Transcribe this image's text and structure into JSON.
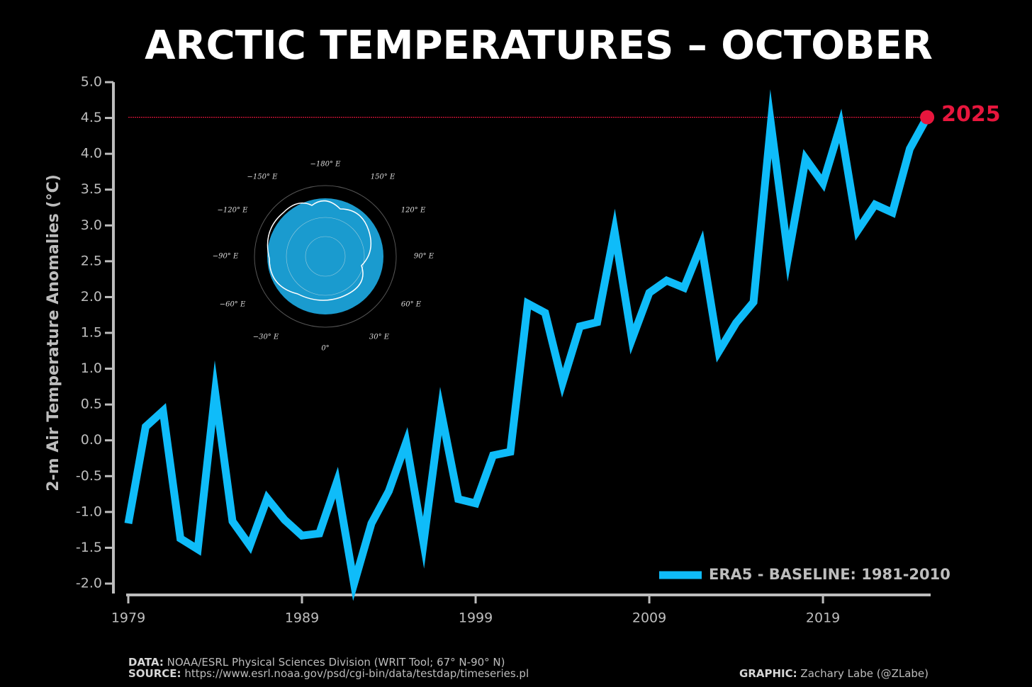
{
  "chart_data": {
    "type": "line",
    "title": "ARCTIC TEMPERATURES – OCTOBER",
    "y_label": "2-m Air Temperature Anomalies (°C)",
    "x": [
      1979,
      1980,
      1981,
      1982,
      1983,
      1984,
      1985,
      1986,
      1987,
      1988,
      1989,
      1990,
      1991,
      1992,
      1993,
      1994,
      1995,
      1996,
      1997,
      1998,
      1999,
      2000,
      2001,
      2002,
      2003,
      2004,
      2005,
      2006,
      2007,
      2008,
      2009,
      2010,
      2011,
      2012,
      2013,
      2014,
      2015,
      2016,
      2017,
      2018,
      2019,
      2020,
      2021,
      2022,
      2023,
      2024,
      2025
    ],
    "series": [
      {
        "name": "ERA5 - BASELINE: 1981-2010",
        "color": "#0fbcf9",
        "values": [
          -1.16,
          0.19,
          0.41,
          -1.37,
          -1.52,
          0.67,
          -1.13,
          -1.47,
          -0.81,
          -1.11,
          -1.33,
          -1.3,
          -0.59,
          -2.0,
          -1.16,
          -0.71,
          -0.03,
          -1.43,
          0.41,
          -0.82,
          -0.88,
          -0.21,
          -0.16,
          1.91,
          1.78,
          0.8,
          1.59,
          1.65,
          2.92,
          1.41,
          2.06,
          2.23,
          2.13,
          2.73,
          1.24,
          1.64,
          1.93,
          4.42,
          2.57,
          3.93,
          3.59,
          4.39,
          2.93,
          3.29,
          3.18,
          4.07,
          4.51
        ]
      }
    ],
    "highlight": {
      "label": "2025",
      "color": "#e8163d"
    },
    "xlim": [
      1979,
      2025.2
    ],
    "xticks": [
      1979,
      1989,
      1999,
      2009,
      2019
    ],
    "ylim": [
      -2.0,
      5.0
    ],
    "yticks": [
      {
        "value": 5.0,
        "label": "5.0"
      },
      {
        "value": 4.5,
        "label": "4.5"
      },
      {
        "value": 4.0,
        "label": "4.0"
      },
      {
        "value": 3.5,
        "label": "3.5"
      },
      {
        "value": 3.0,
        "label": "3.0"
      },
      {
        "value": 2.5,
        "label": "2.5"
      },
      {
        "value": 2.0,
        "label": "2.0"
      },
      {
        "value": 1.5,
        "label": "1.5"
      },
      {
        "value": 1.0,
        "label": "1.0"
      },
      {
        "value": 0.5,
        "label": "0.5"
      },
      {
        "value": 0.0,
        "label": "0.0"
      },
      {
        "value": -0.5,
        "label": "-0.5"
      },
      {
        "value": -1.0,
        "label": "-1.0"
      },
      {
        "value": -1.5,
        "label": "-1.5"
      },
      {
        "value": -2.0,
        "label": "-2.0"
      }
    ],
    "legend": "lower right",
    "map_labels": [
      "−180° E",
      "150° E",
      "120° E",
      "90° E",
      "60° E",
      "30° E",
      "0°",
      "−30° E",
      "−60° E",
      "−90° E",
      "−120° E",
      "−150° E"
    ],
    "notes": [
      {
        "label": "DATA:",
        "text": "NOAA/ESRL Physical Sciences Division (WRIT Tool; 67° N-90° N)"
      },
      {
        "label": "SOURCE:",
        "text": "https://www.esrl.noaa.gov/psd/cgi-bin/data/testdap/timeseries.pl"
      },
      {
        "label": "GRAPHIC:",
        "text": "Zachary Labe (@ZLabe)"
      }
    ]
  }
}
